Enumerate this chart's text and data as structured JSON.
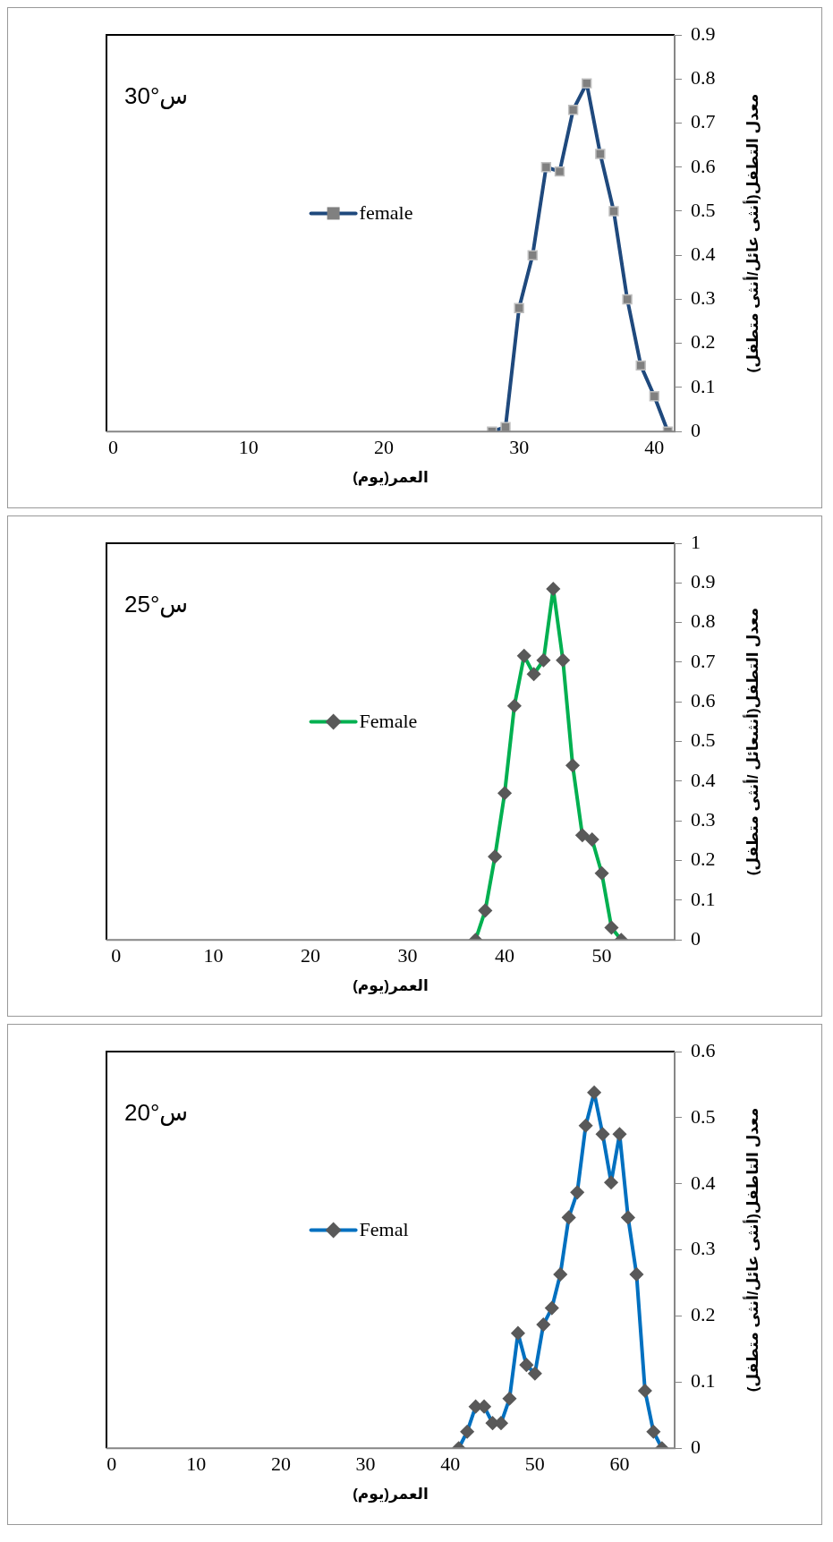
{
  "chart_data": [
    {
      "type": "line",
      "xlabel": "العمر(يوم)",
      "ylabel": "معدل التطفل(أنثى عائل/أنثى متطفل)",
      "annotations": [
        "30°س"
      ],
      "x": [
        28,
        29,
        30,
        31,
        32,
        33,
        34,
        35,
        36,
        37,
        38,
        39,
        40,
        41
      ],
      "series": [
        {
          "name": "female",
          "color": "#1f497d",
          "values": [
            0,
            0.01,
            0.28,
            0.4,
            0.6,
            0.59,
            0.73,
            0.79,
            0.63,
            0.5,
            0.3,
            0.15,
            0.08,
            0
          ]
        }
      ],
      "xlim": [
        -0.5,
        41.5
      ],
      "xticks": [
        0,
        10,
        20,
        30,
        40
      ],
      "ylim": [
        0,
        0.9
      ],
      "yticks": [
        0,
        0.1,
        0.2,
        0.3,
        0.4,
        0.5,
        0.6,
        0.7,
        0.8,
        0.9
      ],
      "grid": false,
      "legend": "center",
      "marker": "square",
      "line_style": "solid"
    },
    {
      "type": "line",
      "xlabel": "العمر(يوم)",
      "ylabel": "معدل التطفل(أنثىعائل /أنثى متطفل)",
      "annotations": [
        "25°س"
      ],
      "x": [
        37,
        38,
        39,
        40,
        41,
        42,
        43,
        44,
        45,
        46,
        47,
        48,
        49,
        50,
        51,
        52
      ],
      "series": [
        {
          "name": "Female",
          "color": "#00b050",
          "values": [
            0,
            0.074,
            0.21,
            0.37,
            0.59,
            0.716,
            0.67,
            0.705,
            0.885,
            0.705,
            0.44,
            0.264,
            0.253,
            0.168,
            0.031,
            0
          ]
        }
      ],
      "xlim": [
        -1,
        57.5
      ],
      "xticks": [
        0,
        10,
        20,
        30,
        40,
        50
      ],
      "ylim": [
        0,
        1
      ],
      "yticks": [
        0,
        0.1,
        0.2,
        0.3,
        0.4,
        0.5,
        0.6,
        0.7,
        0.8,
        0.9,
        1
      ],
      "grid": false,
      "legend": "center",
      "marker": "diamond",
      "line_style": "solid"
    },
    {
      "type": "line",
      "xlabel": "العمر(يوم)",
      "ylabel": "معدل التاطفل(أنثى عائل/أنثى متطفل)",
      "annotations": [
        "20°س"
      ],
      "x": [
        41,
        42,
        43,
        44,
        45,
        46,
        47,
        48,
        49,
        50,
        51,
        52,
        53,
        54,
        55,
        56,
        57,
        58,
        59,
        60,
        61,
        62,
        63,
        64,
        65
      ],
      "series": [
        {
          "name": "Femal",
          "color": "#0070c0",
          "values": [
            0,
            0.025,
            0.063,
            0.063,
            0.038,
            0.038,
            0.075,
            0.174,
            0.126,
            0.113,
            0.187,
            0.212,
            0.263,
            0.349,
            0.387,
            0.488,
            0.538,
            0.475,
            0.402,
            0.475,
            0.349,
            0.263,
            0.087,
            0.025,
            0
          ]
        }
      ],
      "xlim": [
        -0.6,
        66.5
      ],
      "xticks": [
        0,
        10,
        20,
        30,
        40,
        50,
        60
      ],
      "ylim": [
        0,
        0.6
      ],
      "yticks": [
        0,
        0.1,
        0.2,
        0.3,
        0.4,
        0.5,
        0.6
      ],
      "grid": false,
      "legend": "center",
      "marker": "diamond",
      "line_style": "solid"
    }
  ]
}
